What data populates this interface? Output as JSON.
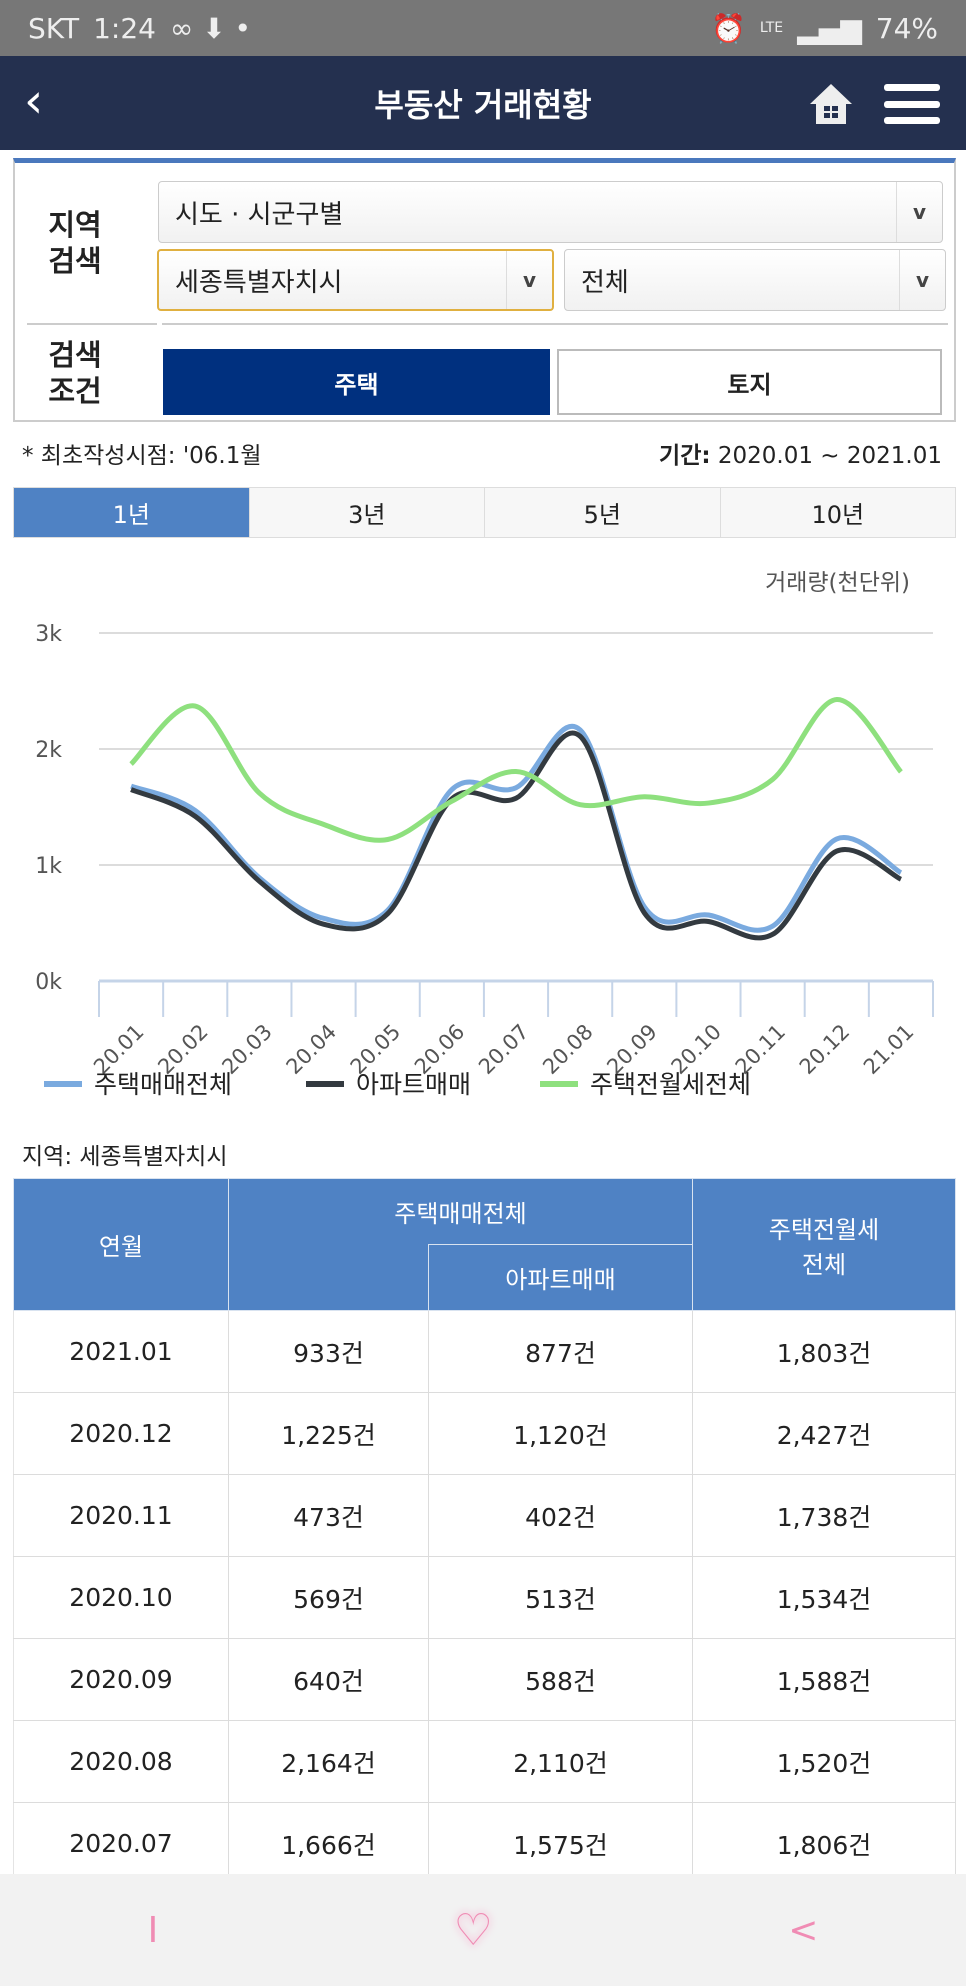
{
  "status": {
    "carrier": "SKT",
    "time": "1:24",
    "network": "LTE",
    "battery": "74%"
  },
  "header": {
    "title": "부동산 거래현황",
    "back_icon": "chevron-left-icon",
    "home_icon": "home-icon",
    "menu_icon": "hamburger-icon"
  },
  "search": {
    "region_label": [
      "지역",
      "검색"
    ],
    "condition_label": [
      "검색",
      "조건"
    ],
    "mode_select": "시도 · 시군구별",
    "city_select": "세종특별자치시",
    "district_select": "전체",
    "buttons": [
      "주택",
      "토지"
    ],
    "active_button": "주택"
  },
  "info": {
    "first_created": "* 최초작성시점: '06.1월",
    "period_label": "기간:",
    "period": "2020.01 ~ 2021.01"
  },
  "tabs": [
    {
      "label": "1년",
      "active": true
    },
    {
      "label": "3년",
      "active": false
    },
    {
      "label": "5년",
      "active": false
    },
    {
      "label": "10년",
      "active": false
    }
  ],
  "chart_data": {
    "type": "line",
    "unit_label": "거래량(천단위)",
    "ylim": [
      0,
      3000
    ],
    "yticks": [
      "0k",
      "1k",
      "2k",
      "3k"
    ],
    "grid": true,
    "legend_position": "bottom",
    "categories": [
      "20.01",
      "20.02",
      "20.03",
      "20.04",
      "20.05",
      "20.06",
      "20.07",
      "20.08",
      "20.09",
      "20.10",
      "20.11",
      "20.12",
      "21.01"
    ],
    "series": [
      {
        "name": "주택매매전체",
        "color": "#7aaadf",
        "values": [
          1680,
          1470,
          890,
          540,
          610,
          1650,
          1666,
          2164,
          640,
          569,
          473,
          1225,
          933
        ]
      },
      {
        "name": "아파트매매",
        "color": "#333a40",
        "values": [
          1650,
          1420,
          860,
          490,
          580,
          1570,
          1575,
          2110,
          588,
          513,
          402,
          1120,
          877
        ]
      },
      {
        "name": "주택전월세전체",
        "color": "#8ee07e",
        "values": [
          1870,
          2370,
          1620,
          1350,
          1220,
          1550,
          1806,
          1520,
          1588,
          1534,
          1738,
          2427,
          1803
        ]
      }
    ]
  },
  "region_label": "지역: 세종특별자치시",
  "table": {
    "headers": {
      "month": "연월",
      "house_sales": "주택매매전체",
      "apt_sales": "아파트매매",
      "rent": [
        "주택전월세",
        "전체"
      ]
    },
    "rows": [
      [
        "2021.01",
        "933건",
        "877건",
        "1,803건"
      ],
      [
        "2020.12",
        "1,225건",
        "1,120건",
        "2,427건"
      ],
      [
        "2020.11",
        "473건",
        "402건",
        "1,738건"
      ],
      [
        "2020.10",
        "569건",
        "513건",
        "1,534건"
      ],
      [
        "2020.09",
        "640건",
        "588건",
        "1,588건"
      ],
      [
        "2020.08",
        "2,164건",
        "2,110건",
        "1,520건"
      ],
      [
        "2020.07",
        "1,666건",
        "1,575건",
        "1,806건"
      ]
    ]
  },
  "bottom_nav": [
    "I",
    "♡",
    "<"
  ]
}
